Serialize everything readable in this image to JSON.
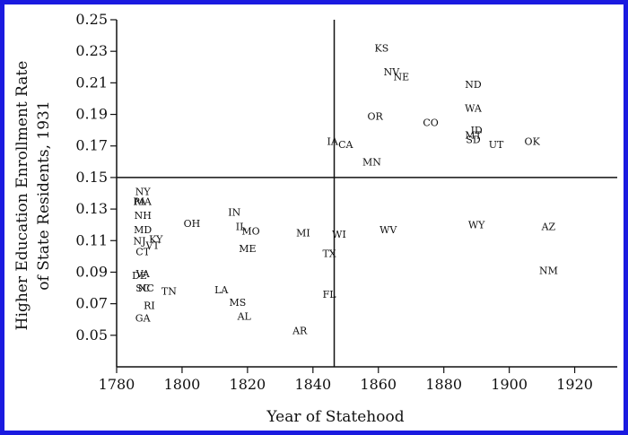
{
  "chart_data": {
    "type": "scatter",
    "title": "",
    "xlabel": "Year of Statehood",
    "ylabel_lines": [
      "Higher Education Enrollment Rate",
      "of State Residents, 1931"
    ],
    "xlim": [
      1780,
      1933
    ],
    "ylim": [
      0.03,
      0.25
    ],
    "x_ticks": [
      1780,
      1800,
      1820,
      1840,
      1860,
      1880,
      1900,
      1920
    ],
    "y_ticks": [
      0.05,
      0.07,
      0.09,
      0.11,
      0.13,
      0.15,
      0.17,
      0.19,
      0.21,
      0.23,
      0.25
    ],
    "y_tick_labels": [
      "0.05",
      "0.07",
      "0.09",
      "0.11",
      "0.13",
      "0.15",
      "0.17",
      "0.19",
      "0.21",
      "0.23",
      "0.25"
    ],
    "reference_lines": {
      "vertical_x": 1846.5,
      "horizontal_y": 0.15
    },
    "grid": false,
    "points": [
      {
        "label": "KS",
        "x": 1861,
        "y": 0.232
      },
      {
        "label": "NV",
        "x": 1864,
        "y": 0.217
      },
      {
        "label": "NE",
        "x": 1867,
        "y": 0.214
      },
      {
        "label": "ND",
        "x": 1889,
        "y": 0.209
      },
      {
        "label": "WA",
        "x": 1889,
        "y": 0.194
      },
      {
        "label": "OR",
        "x": 1859,
        "y": 0.189
      },
      {
        "label": "CO",
        "x": 1876,
        "y": 0.185
      },
      {
        "label": "ID",
        "x": 1890,
        "y": 0.18
      },
      {
        "label": "MT",
        "x": 1889,
        "y": 0.177
      },
      {
        "label": "SD",
        "x": 1889,
        "y": 0.174
      },
      {
        "label": "UT",
        "x": 1896,
        "y": 0.171
      },
      {
        "label": "OK",
        "x": 1907,
        "y": 0.173
      },
      {
        "label": "IA",
        "x": 1846,
        "y": 0.173
      },
      {
        "label": "CA",
        "x": 1850,
        "y": 0.171
      },
      {
        "label": "MN",
        "x": 1858,
        "y": 0.16
      },
      {
        "label": "NY",
        "x": 1788,
        "y": 0.141
      },
      {
        "label": "PA",
        "x": 1787,
        "y": 0.135
      },
      {
        "label": "MA",
        "x": 1788,
        "y": 0.135
      },
      {
        "label": "NH",
        "x": 1788,
        "y": 0.126
      },
      {
        "label": "OH",
        "x": 1803,
        "y": 0.121
      },
      {
        "label": "IN",
        "x": 1816,
        "y": 0.128
      },
      {
        "label": "IL",
        "x": 1818,
        "y": 0.119
      },
      {
        "label": "MO",
        "x": 1821,
        "y": 0.116
      },
      {
        "label": "MD",
        "x": 1788,
        "y": 0.117
      },
      {
        "label": "MI",
        "x": 1837,
        "y": 0.115
      },
      {
        "label": "WI",
        "x": 1848,
        "y": 0.114
      },
      {
        "label": "WV",
        "x": 1863,
        "y": 0.117
      },
      {
        "label": "WY",
        "x": 1890,
        "y": 0.12
      },
      {
        "label": "AZ",
        "x": 1912,
        "y": 0.119
      },
      {
        "label": "NJ",
        "x": 1787,
        "y": 0.11
      },
      {
        "label": "VT",
        "x": 1791,
        "y": 0.107
      },
      {
        "label": "KY",
        "x": 1792,
        "y": 0.111
      },
      {
        "label": "CT",
        "x": 1788,
        "y": 0.103
      },
      {
        "label": "ME",
        "x": 1820,
        "y": 0.105
      },
      {
        "label": "TX",
        "x": 1845,
        "y": 0.102
      },
      {
        "label": "NM",
        "x": 1912,
        "y": 0.091
      },
      {
        "label": "DE",
        "x": 1787,
        "y": 0.088
      },
      {
        "label": "VA",
        "x": 1788,
        "y": 0.089
      },
      {
        "label": "SC",
        "x": 1788,
        "y": 0.08
      },
      {
        "label": "NC",
        "x": 1789,
        "y": 0.08
      },
      {
        "label": "TN",
        "x": 1796,
        "y": 0.078
      },
      {
        "label": "LA",
        "x": 1812,
        "y": 0.079
      },
      {
        "label": "FL",
        "x": 1845,
        "y": 0.076
      },
      {
        "label": "MS",
        "x": 1817,
        "y": 0.071
      },
      {
        "label": "RI",
        "x": 1790,
        "y": 0.069
      },
      {
        "label": "AL",
        "x": 1819,
        "y": 0.062
      },
      {
        "label": "GA",
        "x": 1788,
        "y": 0.061
      },
      {
        "label": "AR",
        "x": 1836,
        "y": 0.053
      }
    ]
  }
}
